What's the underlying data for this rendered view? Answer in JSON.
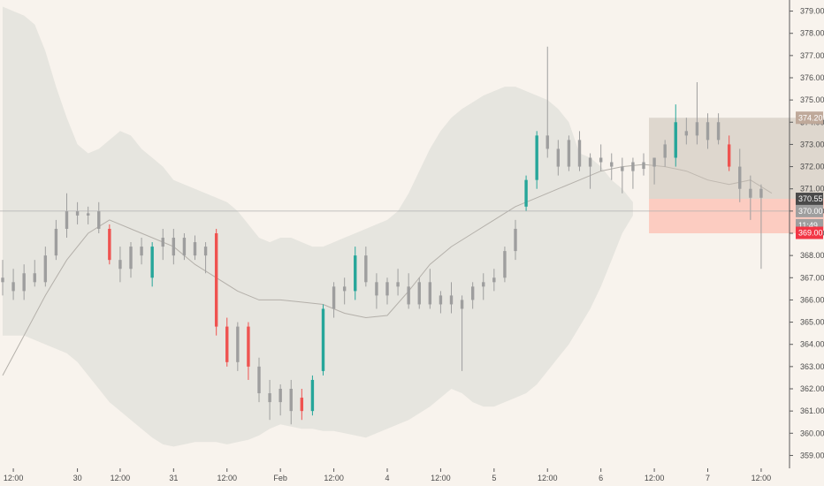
{
  "colors": {
    "background": "#f8f3ed",
    "band_fill": "#e3e2dc",
    "up": "#26a69a",
    "down": "#ef5350",
    "neutral": "#9e9e9e",
    "basis_line": "#b4b0aa",
    "stop_zone": "#ffb3a3",
    "target_zone": "#c8bfb4",
    "crosshair": "#b0b0b0",
    "axis_line": "#5a5a5a",
    "badge_dark": "#4a4a4a",
    "badge_red": "#f23645",
    "badge_taupe": "#bfa99a",
    "badge_grey": "#9e9e9e"
  },
  "price_axis": {
    "ticks": [
      "379.00",
      "378.00",
      "377.00",
      "376.00",
      "375.00",
      "374.00",
      "373.00",
      "372.00",
      "371.00",
      "370.00",
      "369.00",
      "368.00",
      "367.00",
      "366.00",
      "365.00",
      "364.00",
      "363.00",
      "362.00",
      "361.00",
      "360.00",
      "359.00"
    ]
  },
  "time_axis": {
    "labels": [
      "12:00",
      "30",
      "12:00",
      "31",
      "12:00",
      "Feb",
      "12:00",
      "4",
      "12:00",
      "5",
      "12:00",
      "6",
      "12:00",
      "7",
      "12:00"
    ]
  },
  "badges": {
    "target": "374.20",
    "last": "370.55",
    "crosshair": "370.00",
    "countdown": "11:49",
    "stop": "369.00"
  },
  "chart_data": {
    "type": "candlestick",
    "title": "",
    "xlabel": "",
    "ylabel": "",
    "ylim": [
      358.5,
      379.5
    ],
    "x_range": [
      0,
      72
    ],
    "x_ticks": [
      {
        "x": 1,
        "label": "12:00"
      },
      {
        "x": 7,
        "label": "30"
      },
      {
        "x": 11,
        "label": "12:00"
      },
      {
        "x": 16,
        "label": "31"
      },
      {
        "x": 21,
        "label": "12:00"
      },
      {
        "x": 26,
        "label": "Feb"
      },
      {
        "x": 31,
        "label": "12:00"
      },
      {
        "x": 36,
        "label": "4"
      },
      {
        "x": 41,
        "label": "12:00"
      },
      {
        "x": 46,
        "label": "5"
      },
      {
        "x": 51,
        "label": "12:00"
      },
      {
        "x": 56,
        "label": "6"
      },
      {
        "x": 61,
        "label": "12:00"
      },
      {
        "x": 66,
        "label": "7"
      },
      {
        "x": 71,
        "label": "12:00"
      }
    ],
    "candles": [
      [
        367,
        367.8,
        366.2,
        366.8,
        "n"
      ],
      [
        366.8,
        367.4,
        366.0,
        366.4,
        "n"
      ],
      [
        366.4,
        367.6,
        366.0,
        367.2,
        "n"
      ],
      [
        367.2,
        367.8,
        366.6,
        366.8,
        "n"
      ],
      [
        366.8,
        368.4,
        366.6,
        368.0,
        "n"
      ],
      [
        368.0,
        369.6,
        367.8,
        369.2,
        "n"
      ],
      [
        369.2,
        370.8,
        368.8,
        370.0,
        "n"
      ],
      [
        370.0,
        370.4,
        369.4,
        369.8,
        "n"
      ],
      [
        369.8,
        370.2,
        369.4,
        369.9,
        "n"
      ],
      [
        370.0,
        370.4,
        369.0,
        369.2,
        "n"
      ],
      [
        369.2,
        369.4,
        367.6,
        367.8,
        "d"
      ],
      [
        367.8,
        368.4,
        366.8,
        367.4,
        "n"
      ],
      [
        367.4,
        368.6,
        367.0,
        368.4,
        "n"
      ],
      [
        368.4,
        368.8,
        367.6,
        368.0,
        "n"
      ],
      [
        367.0,
        368.6,
        366.6,
        368.4,
        "u"
      ],
      [
        368.4,
        369.2,
        367.8,
        368.8,
        "n"
      ],
      [
        368.8,
        369.2,
        367.6,
        368.0,
        "n"
      ],
      [
        368.0,
        369.0,
        367.8,
        368.8,
        "n"
      ],
      [
        368.6,
        368.9,
        367.8,
        368.0,
        "n"
      ],
      [
        368.0,
        368.6,
        367.2,
        368.4,
        "n"
      ],
      [
        369.0,
        369.2,
        364.4,
        364.8,
        "d"
      ],
      [
        364.8,
        365.2,
        363.0,
        363.2,
        "d"
      ],
      [
        363.2,
        365.0,
        362.8,
        364.8,
        "n"
      ],
      [
        364.8,
        365.0,
        362.4,
        363.0,
        "d"
      ],
      [
        363.0,
        363.4,
        361.4,
        361.8,
        "n"
      ],
      [
        361.8,
        362.4,
        360.6,
        361.4,
        "n"
      ],
      [
        361.4,
        362.2,
        360.8,
        362.0,
        "n"
      ],
      [
        362.0,
        362.4,
        360.4,
        361.0,
        "n"
      ],
      [
        361.6,
        362.0,
        360.6,
        361.0,
        "d"
      ],
      [
        361.0,
        362.6,
        360.8,
        362.4,
        "u"
      ],
      [
        362.8,
        365.8,
        362.6,
        365.6,
        "u"
      ],
      [
        365.6,
        366.8,
        365.2,
        366.6,
        "n"
      ],
      [
        366.6,
        367.0,
        365.8,
        366.4,
        "n"
      ],
      [
        366.4,
        368.4,
        366.0,
        368.0,
        "u"
      ],
      [
        368.0,
        368.4,
        366.6,
        366.8,
        "n"
      ],
      [
        366.8,
        367.2,
        365.6,
        366.2,
        "n"
      ],
      [
        366.2,
        367.0,
        365.8,
        366.8,
        "n"
      ],
      [
        366.8,
        367.4,
        366.2,
        366.6,
        "n"
      ],
      [
        366.6,
        367.2,
        365.6,
        365.8,
        "n"
      ],
      [
        365.8,
        367.0,
        365.6,
        366.8,
        "n"
      ],
      [
        366.8,
        367.4,
        365.6,
        365.8,
        "n"
      ],
      [
        365.8,
        366.4,
        365.4,
        366.2,
        "n"
      ],
      [
        366.2,
        366.8,
        365.4,
        365.8,
        "n"
      ],
      [
        365.6,
        366.2,
        362.8,
        366.0,
        "n"
      ],
      [
        366.0,
        366.8,
        365.6,
        366.6,
        "n"
      ],
      [
        366.6,
        367.2,
        366.0,
        366.8,
        "n"
      ],
      [
        366.8,
        367.4,
        366.4,
        367.0,
        "n"
      ],
      [
        367.0,
        368.4,
        366.8,
        368.2,
        "n"
      ],
      [
        368.2,
        369.6,
        367.8,
        369.2,
        "n"
      ],
      [
        370.2,
        371.6,
        370.0,
        371.4,
        "u"
      ],
      [
        371.4,
        373.6,
        371.0,
        373.4,
        "u"
      ],
      [
        373.4,
        377.4,
        372.4,
        372.8,
        "n"
      ],
      [
        372.8,
        373.2,
        371.6,
        372.0,
        "n"
      ],
      [
        372.0,
        373.4,
        371.8,
        373.2,
        "n"
      ],
      [
        373.2,
        373.6,
        371.8,
        372.0,
        "n"
      ],
      [
        372.0,
        372.6,
        371.0,
        372.4,
        "n"
      ],
      [
        372.4,
        373.0,
        371.8,
        372.2,
        "n"
      ],
      [
        372.2,
        372.6,
        371.4,
        372.0,
        "n"
      ],
      [
        372.0,
        372.4,
        370.8,
        371.8,
        "n"
      ],
      [
        371.8,
        372.4,
        371.0,
        372.2,
        "n"
      ],
      [
        372.2,
        372.6,
        371.6,
        371.9,
        "n"
      ],
      [
        372.0,
        372.4,
        371.2,
        372.4,
        "n"
      ],
      [
        372.4,
        373.2,
        372.0,
        373.0,
        "n"
      ],
      [
        372.4,
        374.8,
        372.0,
        374.0,
        "u"
      ],
      [
        373.6,
        374.2,
        373.0,
        373.4,
        "n"
      ],
      [
        373.4,
        375.8,
        373.0,
        374.0,
        "n"
      ],
      [
        374.0,
        374.4,
        372.8,
        373.2,
        "n"
      ],
      [
        373.2,
        374.4,
        373.0,
        374.0,
        "n"
      ],
      [
        373.0,
        373.4,
        371.8,
        372.0,
        "d"
      ],
      [
        372.0,
        372.8,
        370.4,
        371.0,
        "n"
      ],
      [
        371.0,
        371.6,
        369.6,
        370.6,
        "n"
      ],
      [
        371.0,
        371.2,
        367.4,
        370.6,
        "n"
      ]
    ],
    "bollinger": {
      "basis": [
        [
          0,
          362.6
        ],
        [
          2,
          364.4
        ],
        [
          4,
          366.2
        ],
        [
          6,
          367.8
        ],
        [
          8,
          369.0
        ],
        [
          10,
          369.6
        ],
        [
          12,
          369.2
        ],
        [
          14,
          368.8
        ],
        [
          16,
          368.4
        ],
        [
          18,
          367.6
        ],
        [
          20,
          367.0
        ],
        [
          22,
          366.4
        ],
        [
          24,
          366.0
        ],
        [
          26,
          366.0
        ],
        [
          28,
          365.9
        ],
        [
          30,
          365.8
        ],
        [
          32,
          365.4
        ],
        [
          34,
          365.2
        ],
        [
          36,
          365.3
        ],
        [
          38,
          366.4
        ],
        [
          40,
          367.6
        ],
        [
          42,
          368.4
        ],
        [
          44,
          369.0
        ],
        [
          46,
          369.6
        ],
        [
          48,
          370.2
        ],
        [
          50,
          370.6
        ],
        [
          52,
          371.0
        ],
        [
          54,
          371.4
        ],
        [
          56,
          371.8
        ],
        [
          58,
          372.0
        ],
        [
          60,
          372.1
        ],
        [
          62,
          372.0
        ],
        [
          64,
          371.8
        ],
        [
          66,
          371.4
        ],
        [
          68,
          371.2
        ],
        [
          70,
          371.4
        ],
        [
          72,
          370.8
        ]
      ],
      "upper": [
        [
          0,
          379.2
        ],
        [
          1,
          379.0
        ],
        [
          2,
          378.8
        ],
        [
          3,
          378.4
        ],
        [
          4,
          377.2
        ],
        [
          5,
          375.6
        ],
        [
          6,
          374.2
        ],
        [
          7,
          373.0
        ],
        [
          8,
          372.6
        ],
        [
          9,
          372.8
        ],
        [
          10,
          373.2
        ],
        [
          11,
          373.6
        ],
        [
          12,
          373.4
        ],
        [
          13,
          372.8
        ],
        [
          14,
          372.4
        ],
        [
          15,
          372.0
        ],
        [
          16,
          371.4
        ],
        [
          17,
          371.2
        ],
        [
          18,
          371.0
        ],
        [
          19,
          370.8
        ],
        [
          20,
          370.6
        ],
        [
          21,
          370.4
        ],
        [
          22,
          370.0
        ],
        [
          23,
          369.4
        ],
        [
          24,
          368.8
        ],
        [
          25,
          368.6
        ],
        [
          26,
          368.8
        ],
        [
          27,
          368.8
        ],
        [
          28,
          368.6
        ],
        [
          29,
          368.4
        ],
        [
          30,
          368.4
        ],
        [
          31,
          368.6
        ],
        [
          32,
          368.8
        ],
        [
          33,
          369.0
        ],
        [
          34,
          369.2
        ],
        [
          35,
          369.4
        ],
        [
          36,
          369.6
        ],
        [
          37,
          370.0
        ],
        [
          38,
          370.8
        ],
        [
          39,
          371.8
        ],
        [
          40,
          372.8
        ],
        [
          41,
          373.6
        ],
        [
          42,
          374.2
        ],
        [
          43,
          374.6
        ],
        [
          44,
          374.9
        ],
        [
          45,
          375.2
        ],
        [
          46,
          375.4
        ],
        [
          47,
          375.6
        ],
        [
          48,
          375.6
        ],
        [
          49,
          375.4
        ],
        [
          50,
          375.2
        ],
        [
          51,
          375.0
        ],
        [
          52,
          374.6
        ],
        [
          53,
          374.0
        ],
        [
          54,
          372.6
        ],
        [
          55,
          372.4
        ],
        [
          56,
          372.0
        ],
        [
          57,
          371.4
        ],
        [
          58,
          371.0
        ],
        [
          59,
          370.4
        ]
      ],
      "lower": [
        [
          59,
          369.8
        ],
        [
          58,
          369.0
        ],
        [
          57,
          367.8
        ],
        [
          56,
          366.6
        ],
        [
          55,
          365.6
        ],
        [
          54,
          364.8
        ],
        [
          53,
          364.0
        ],
        [
          52,
          363.4
        ],
        [
          51,
          362.8
        ],
        [
          50,
          362.2
        ],
        [
          49,
          361.8
        ],
        [
          48,
          361.6
        ],
        [
          47,
          361.4
        ],
        [
          46,
          361.2
        ],
        [
          45,
          361.2
        ],
        [
          44,
          361.4
        ],
        [
          43,
          361.8
        ],
        [
          42,
          362.0
        ],
        [
          41,
          361.6
        ],
        [
          40,
          361.2
        ],
        [
          39,
          360.9
        ],
        [
          38,
          360.6
        ],
        [
          37,
          360.4
        ],
        [
          36,
          360.2
        ],
        [
          35,
          360.0
        ],
        [
          34,
          359.8
        ],
        [
          33,
          359.9
        ],
        [
          32,
          360.0
        ],
        [
          31,
          360.1
        ],
        [
          30,
          360.1
        ],
        [
          29,
          360.2
        ],
        [
          28,
          360.2
        ],
        [
          27,
          360.3
        ],
        [
          26,
          360.4
        ],
        [
          25,
          360.2
        ],
        [
          24,
          359.9
        ],
        [
          23,
          359.7
        ],
        [
          22,
          359.6
        ],
        [
          21,
          359.5
        ],
        [
          20,
          359.6
        ],
        [
          19,
          359.6
        ],
        [
          18,
          359.6
        ],
        [
          17,
          359.5
        ],
        [
          16,
          359.4
        ],
        [
          15,
          359.5
        ],
        [
          14,
          359.8
        ],
        [
          13,
          360.2
        ],
        [
          12,
          360.6
        ],
        [
          11,
          361.0
        ],
        [
          10,
          361.4
        ],
        [
          9,
          362.0
        ],
        [
          8,
          362.6
        ],
        [
          7,
          363.2
        ],
        [
          6,
          363.6
        ],
        [
          5,
          363.8
        ],
        [
          4,
          364.0
        ],
        [
          3,
          364.2
        ],
        [
          2,
          364.4
        ],
        [
          1,
          364.4
        ],
        [
          0,
          364.4
        ]
      ]
    },
    "position": {
      "x_start": 60.5,
      "x_end": 108,
      "entry": 370.55,
      "target": 374.2,
      "stop": 369.0
    },
    "crosshair_price": 370.0,
    "last_price": 370.55
  }
}
